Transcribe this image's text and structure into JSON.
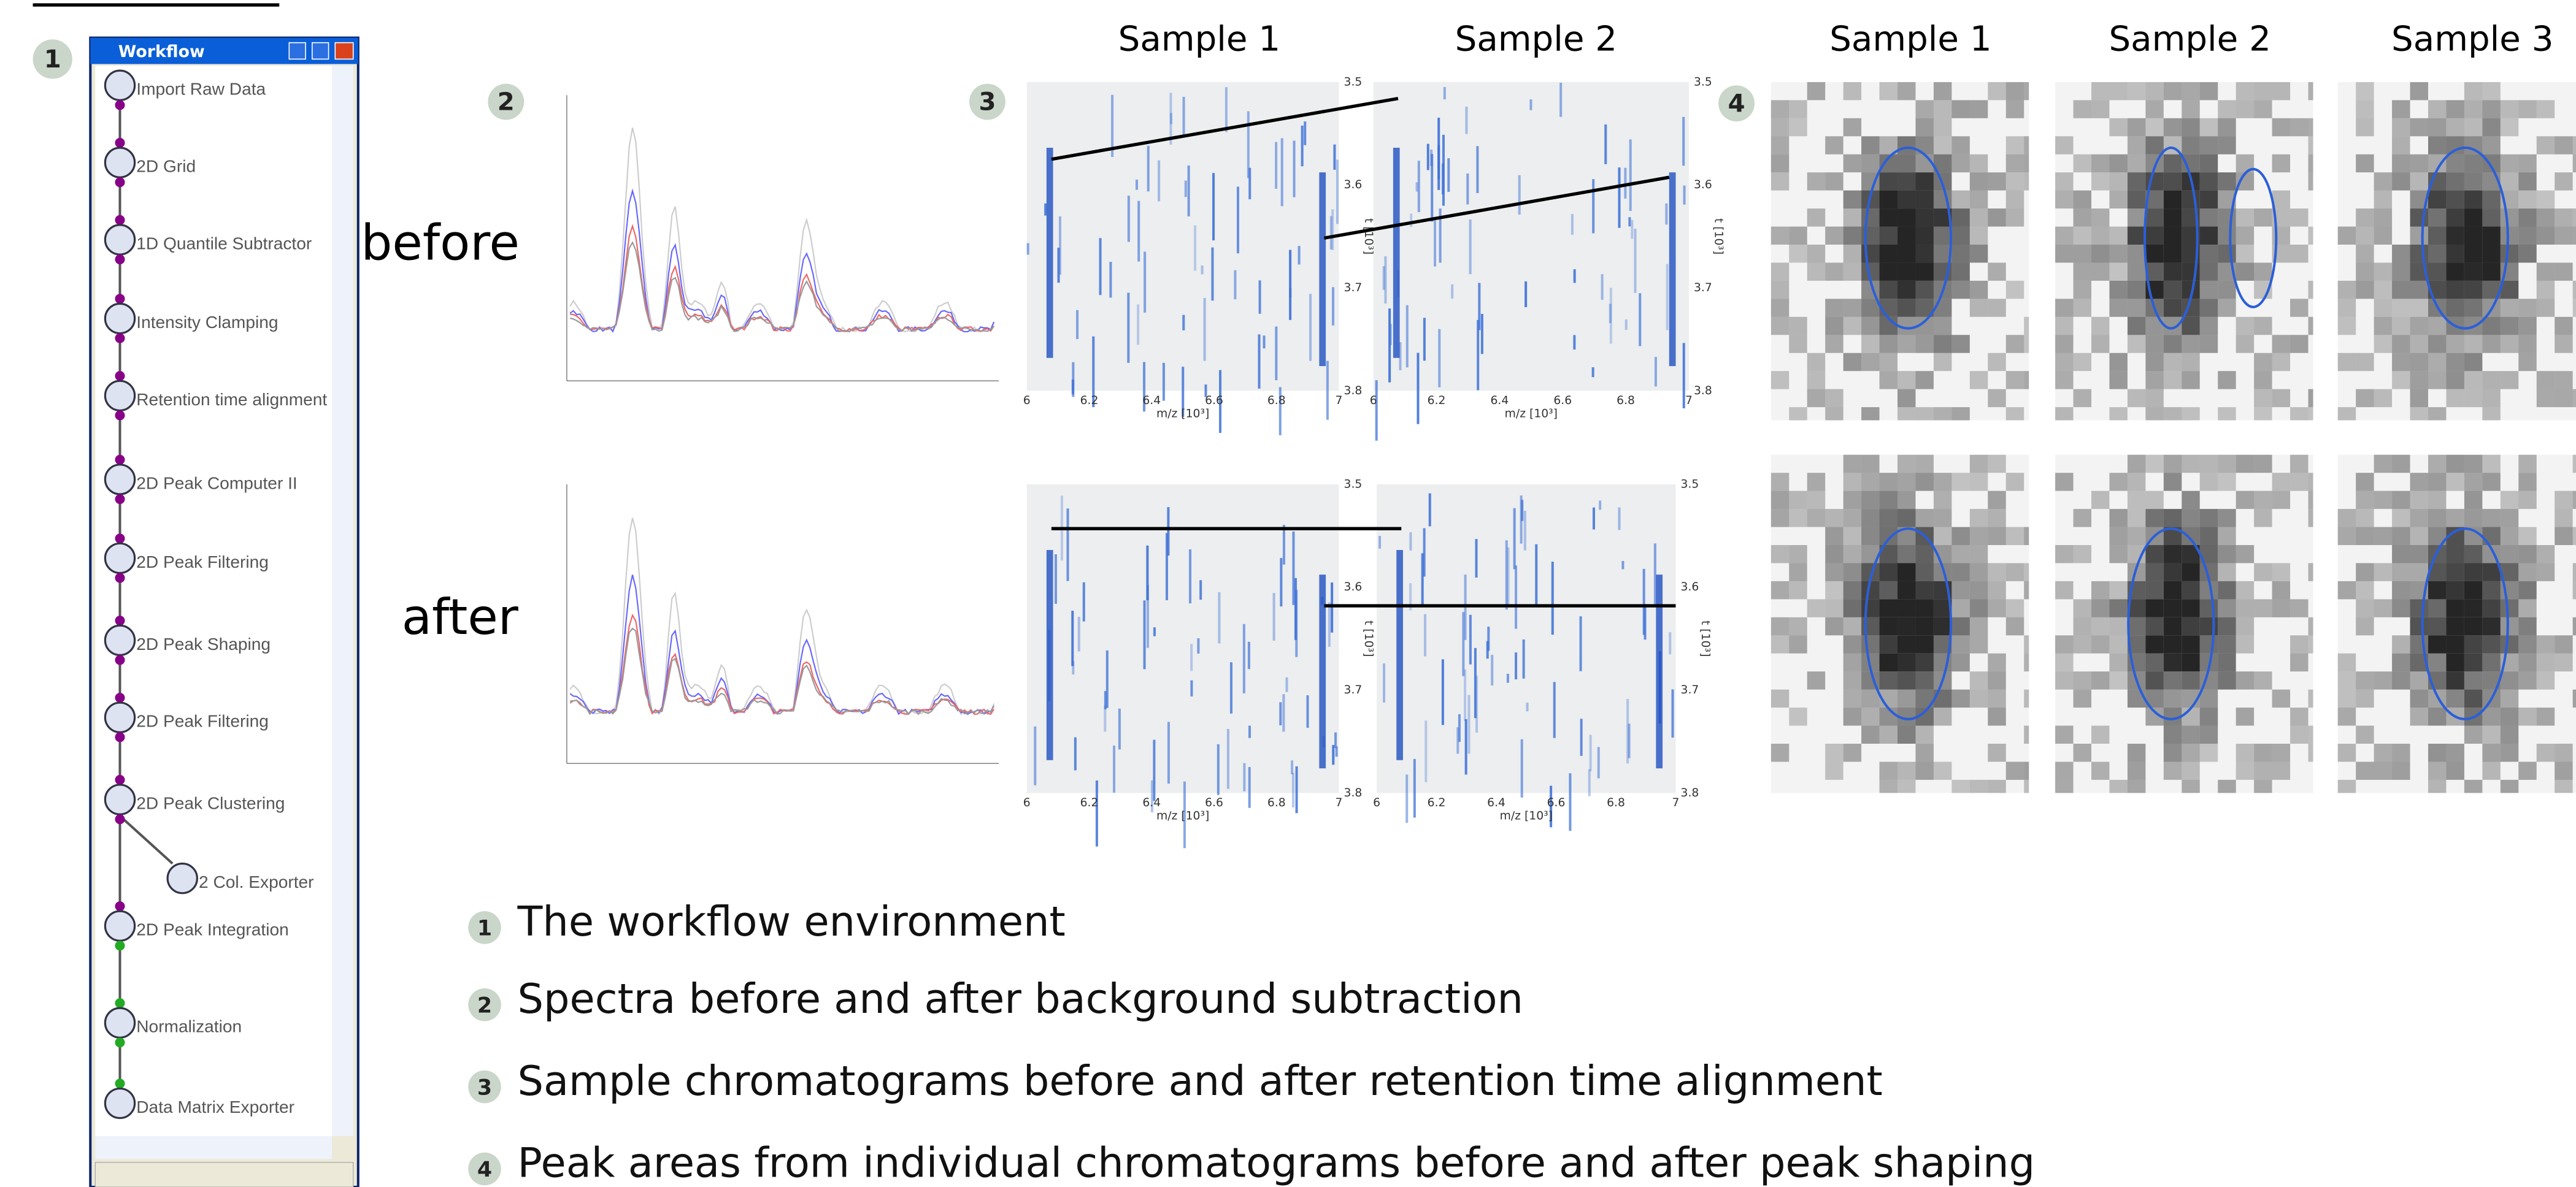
{
  "workflow": {
    "title": "Workflow",
    "nodes": [
      "Import Raw Data",
      "2D Grid",
      "1D Quantile Subtractor",
      "Intensity Clamping",
      "Retention time alignment",
      "2D Peak Computer II",
      "2D Peak Filtering",
      "2D Peak Shaping",
      "2D Peak Filtering",
      "2D Peak Clustering",
      "2 Col. Exporter",
      "2D Peak Integration",
      "Normalization",
      "Data Matrix Exporter"
    ]
  },
  "panels": [
    "1",
    "2",
    "3",
    "4"
  ],
  "row_labels": [
    "before",
    "after"
  ],
  "chromatogram_headers": [
    "Sample 1",
    "Sample 2"
  ],
  "peak_headers": [
    "Sample 1",
    "Sample 2",
    "Sample 3"
  ],
  "chromatogram_axes": {
    "x_label": "m/z [10³]",
    "y_label": "t [10³]",
    "x_ticks": [
      "6",
      "6.2",
      "6.4",
      "6.6",
      "6.8",
      "7"
    ],
    "y_ticks": [
      "3.5",
      "3.6",
      "3.7",
      "3.8"
    ]
  },
  "legend": [
    {
      "number": "1",
      "text": "The workflow environment"
    },
    {
      "number": "2",
      "text": "Spectra before and after background subtraction"
    },
    {
      "number": "3",
      "text": "Sample chromatograms before and after retention time alignment"
    },
    {
      "number": "4",
      "text": "Peak areas from individual chromatograms before and after peak shaping"
    }
  ]
}
